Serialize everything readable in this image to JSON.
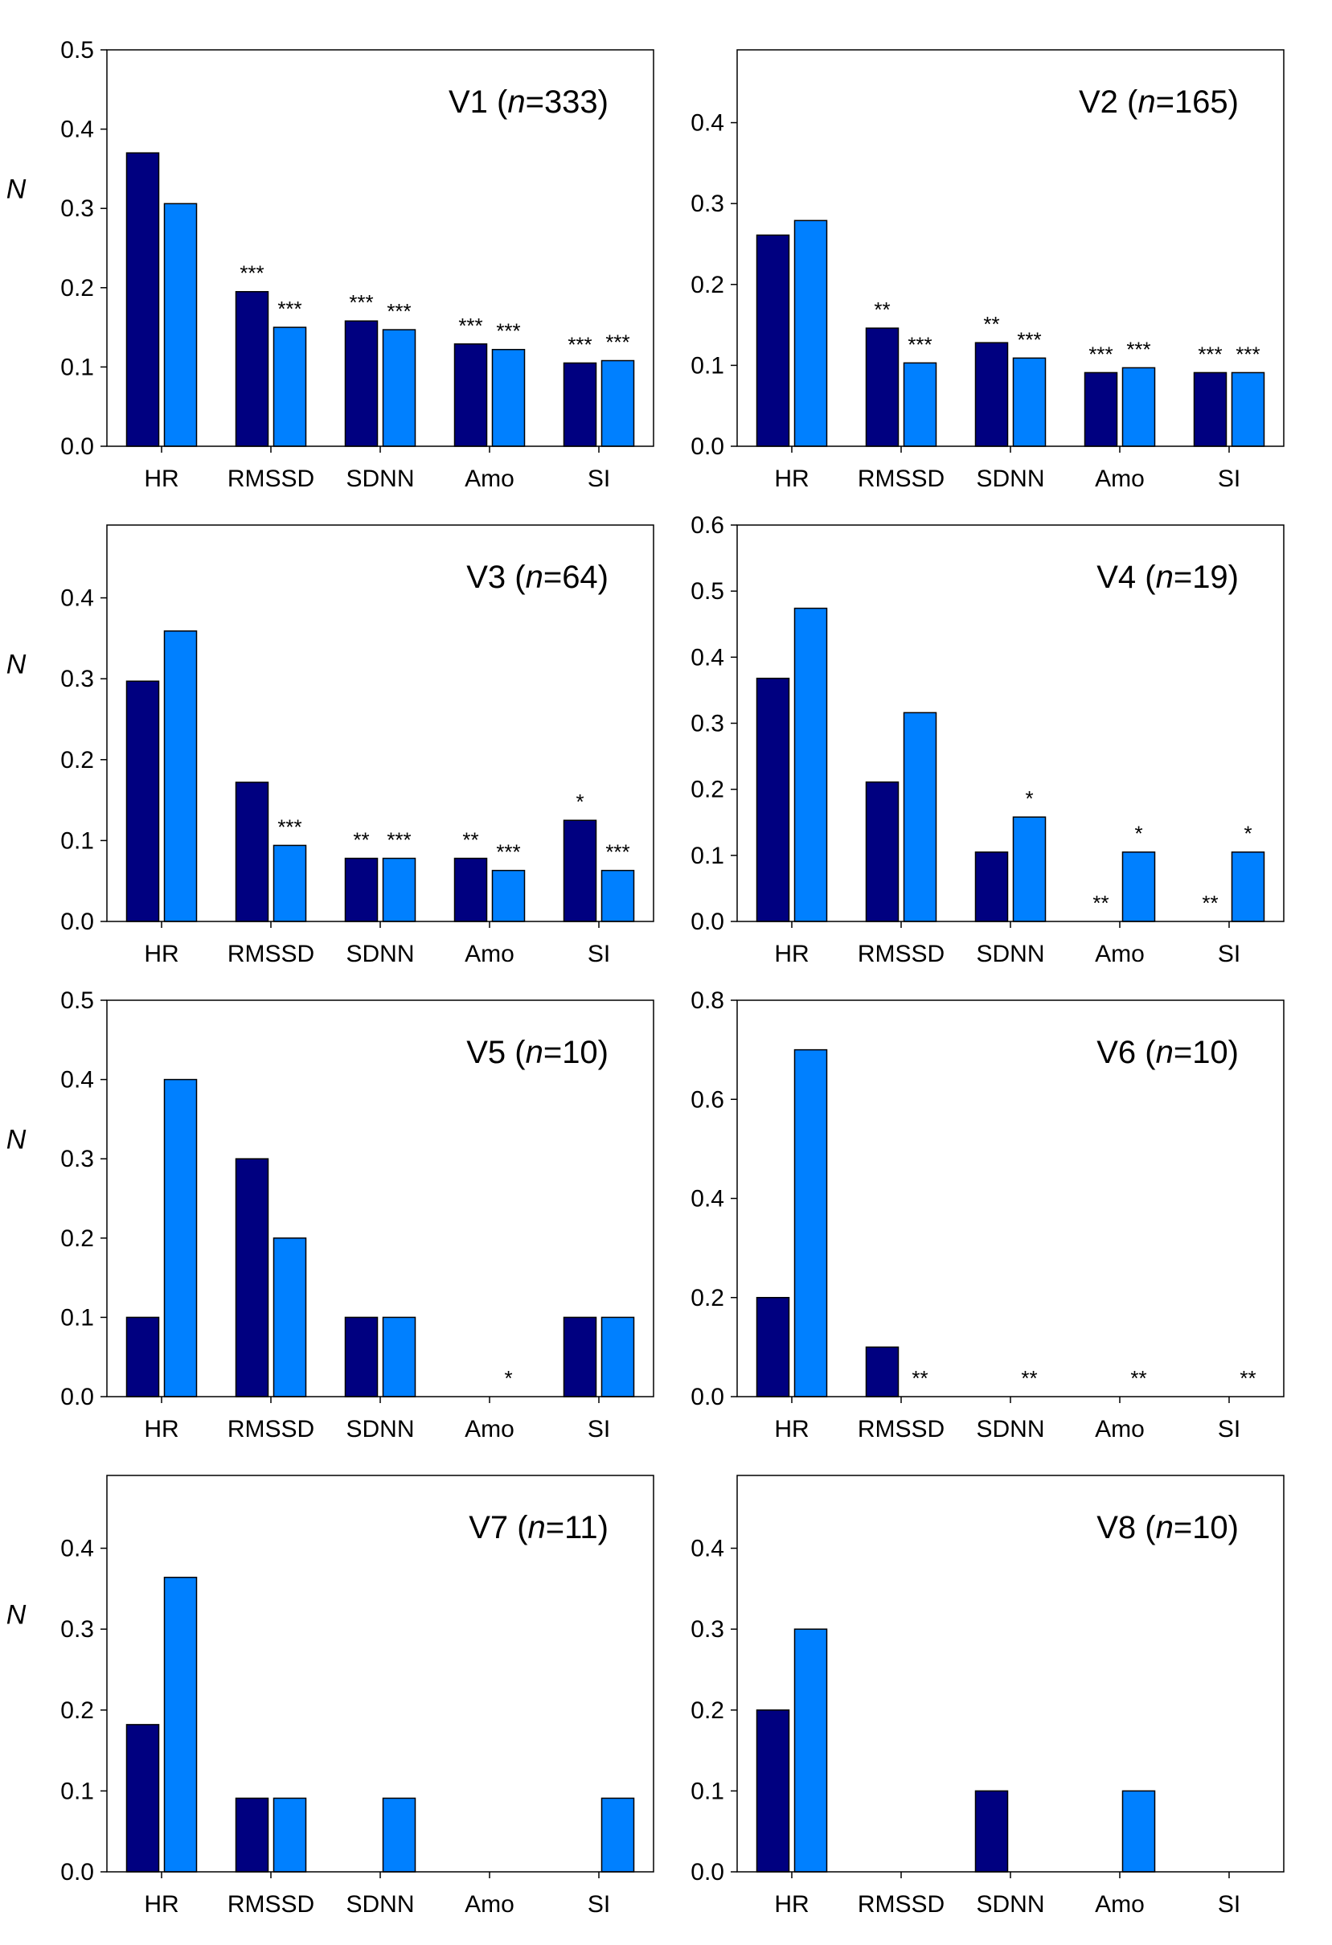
{
  "colors": {
    "series_dark": "#000080",
    "series_light": "#0080FF",
    "axis": "#000000"
  },
  "chart_data": [
    {
      "type": "bar",
      "title_prefix": "V1 (",
      "title_n": "n",
      "title_suffix": "=333)",
      "ylabel": "N",
      "ylim": [
        0,
        0.5
      ],
      "yticks": [
        "0.0",
        "0.1",
        "0.2",
        "0.3",
        "0.4",
        "0.5"
      ],
      "categories": [
        "HR",
        "RMSSD",
        "SDNN",
        "Amo",
        "SI"
      ],
      "series": [
        {
          "values": [
            0.37,
            0.195,
            0.158,
            0.129,
            0.105
          ],
          "marks": [
            "",
            "***",
            "***",
            "***",
            "***"
          ]
        },
        {
          "values": [
            0.306,
            0.15,
            0.147,
            0.122,
            0.108
          ],
          "marks": [
            "",
            "***",
            "***",
            "***",
            "***"
          ]
        }
      ]
    },
    {
      "type": "bar",
      "title_prefix": "V2 (",
      "title_n": "n",
      "title_suffix": "=165)",
      "ylabel": "",
      "ylim": [
        0,
        0.49
      ],
      "yticks": [
        "0.0",
        "0.1",
        "0.2",
        "0.3",
        "0.4"
      ],
      "categories": [
        "HR",
        "RMSSD",
        "SDNN",
        "Amo",
        "SI"
      ],
      "series": [
        {
          "values": [
            0.261,
            0.146,
            0.128,
            0.091,
            0.091
          ],
          "marks": [
            "",
            "**",
            "**",
            "***",
            "***"
          ]
        },
        {
          "values": [
            0.279,
            0.103,
            0.109,
            0.097,
            0.091
          ],
          "marks": [
            "",
            "***",
            "***",
            "***",
            "***"
          ]
        }
      ]
    },
    {
      "type": "bar",
      "title_prefix": "V3 (",
      "title_n": "n",
      "title_suffix": "=64)",
      "ylabel": "N",
      "ylim": [
        0,
        0.49
      ],
      "yticks": [
        "0.0",
        "0.1",
        "0.2",
        "0.3",
        "0.4"
      ],
      "categories": [
        "HR",
        "RMSSD",
        "SDNN",
        "Amo",
        "SI"
      ],
      "series": [
        {
          "values": [
            0.297,
            0.172,
            0.078,
            0.078,
            0.125
          ],
          "marks": [
            "",
            "",
            "**",
            "**",
            "*"
          ]
        },
        {
          "values": [
            0.359,
            0.094,
            0.078,
            0.063,
            0.063
          ],
          "marks": [
            "",
            "***",
            "***",
            "***",
            "***"
          ]
        }
      ]
    },
    {
      "type": "bar",
      "title_prefix": "V4 (",
      "title_n": "n",
      "title_suffix": "=19)",
      "ylabel": "",
      "ylim": [
        0,
        0.6
      ],
      "yticks": [
        "0.0",
        "0.1",
        "0.2",
        "0.3",
        "0.4",
        "0.5",
        "0.6"
      ],
      "categories": [
        "HR",
        "RMSSD",
        "SDNN",
        "Amo",
        "SI"
      ],
      "series": [
        {
          "values": [
            0.368,
            0.211,
            0.105,
            0,
            0
          ],
          "marks": [
            "",
            "",
            "",
            "**",
            "**"
          ]
        },
        {
          "values": [
            0.474,
            0.316,
            0.158,
            0.105,
            0.105
          ],
          "marks": [
            "",
            "",
            "*",
            "*",
            "*"
          ]
        }
      ]
    },
    {
      "type": "bar",
      "title_prefix": "V5 (",
      "title_n": "n",
      "title_suffix": "=10)",
      "ylabel": "N",
      "ylim": [
        0,
        0.5
      ],
      "yticks": [
        "0.0",
        "0.1",
        "0.2",
        "0.3",
        "0.4",
        "0.5"
      ],
      "categories": [
        "HR",
        "RMSSD",
        "SDNN",
        "Amo",
        "SI"
      ],
      "series": [
        {
          "values": [
            0.1,
            0.3,
            0.1,
            0,
            0.1
          ],
          "marks": [
            "",
            "",
            "",
            "",
            ""
          ]
        },
        {
          "values": [
            0.4,
            0.2,
            0.1,
            0,
            0.1
          ],
          "marks": [
            "",
            "",
            "",
            "*",
            ""
          ]
        }
      ]
    },
    {
      "type": "bar",
      "title_prefix": "V6 (",
      "title_n": "n",
      "title_suffix": "=10)",
      "ylabel": "",
      "ylim": [
        0,
        0.8
      ],
      "yticks": [
        "0.0",
        "0.2",
        "0.4",
        "0.6",
        "0.8"
      ],
      "categories": [
        "HR",
        "RMSSD",
        "SDNN",
        "Amo",
        "SI"
      ],
      "series": [
        {
          "values": [
            0.2,
            0.1,
            0,
            0,
            0
          ],
          "marks": [
            "",
            "",
            "",
            "",
            ""
          ]
        },
        {
          "values": [
            0.7,
            0,
            0,
            0,
            0
          ],
          "marks": [
            "",
            "**",
            "**",
            "**",
            "**"
          ]
        }
      ]
    },
    {
      "type": "bar",
      "title_prefix": "V7 (",
      "title_n": "n",
      "title_suffix": "=11)",
      "ylabel": "N",
      "ylim": [
        0,
        0.49
      ],
      "yticks": [
        "0.0",
        "0.1",
        "0.2",
        "0.3",
        "0.4"
      ],
      "categories": [
        "HR",
        "RMSSD",
        "SDNN",
        "Amo",
        "SI"
      ],
      "series": [
        {
          "values": [
            0.182,
            0.091,
            0,
            0,
            0
          ],
          "marks": [
            "",
            "",
            "",
            "",
            ""
          ]
        },
        {
          "values": [
            0.364,
            0.091,
            0.091,
            0,
            0.091
          ],
          "marks": [
            "",
            "",
            "",
            "",
            ""
          ]
        }
      ]
    },
    {
      "type": "bar",
      "title_prefix": "V8 (",
      "title_n": "n",
      "title_suffix": "=10)",
      "ylabel": "",
      "ylim": [
        0,
        0.49
      ],
      "yticks": [
        "0.0",
        "0.1",
        "0.2",
        "0.3",
        "0.4"
      ],
      "categories": [
        "HR",
        "RMSSD",
        "SDNN",
        "Amo",
        "SI"
      ],
      "series": [
        {
          "values": [
            0.2,
            0,
            0.1,
            0,
            0
          ],
          "marks": [
            "",
            "",
            "",
            "",
            ""
          ]
        },
        {
          "values": [
            0.3,
            0,
            0,
            0.1,
            0
          ],
          "marks": [
            "",
            "",
            "",
            "",
            ""
          ]
        }
      ]
    }
  ]
}
